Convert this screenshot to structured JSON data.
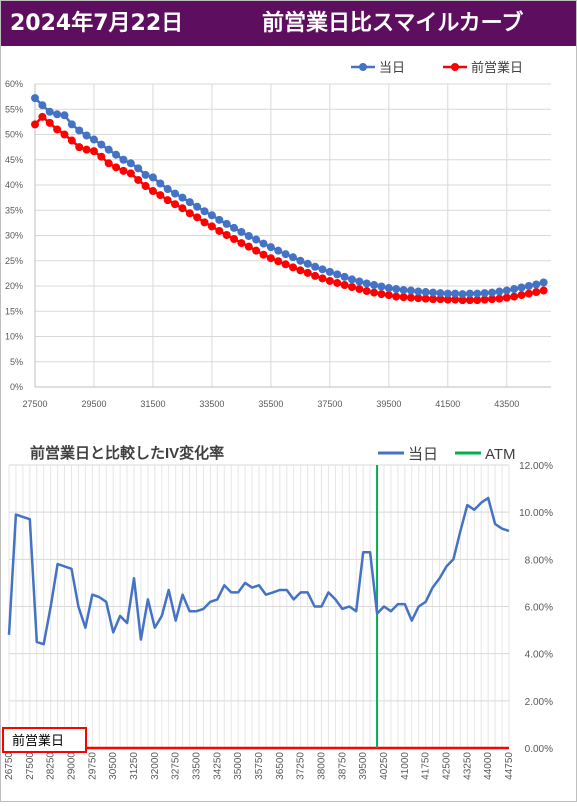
{
  "header": {
    "date": "2024年7月22日",
    "title": "前営業日比スマイルカーブ",
    "bg_color": "#5e0e5e"
  },
  "chart_data": [
    {
      "type": "line",
      "title": "",
      "xlabel": "",
      "ylabel": "",
      "x_ticks": [
        27500,
        29500,
        31500,
        33500,
        35500,
        37500,
        39500,
        41500,
        43500
      ],
      "y_ticks": [
        "0%",
        "5%",
        "10%",
        "15%",
        "20%",
        "25%",
        "30%",
        "35%",
        "40%",
        "45%",
        "50%",
        "55%",
        "60%"
      ],
      "xlim": [
        27500,
        45000
      ],
      "ylim": [
        0,
        60
      ],
      "grid": true,
      "legend": "top-right",
      "x": [
        27500,
        27750,
        28000,
        28250,
        28500,
        28750,
        29000,
        29250,
        29500,
        29750,
        30000,
        30250,
        30500,
        30750,
        31000,
        31250,
        31500,
        31750,
        32000,
        32250,
        32500,
        32750,
        33000,
        33250,
        33500,
        33750,
        34000,
        34250,
        34500,
        34750,
        35000,
        35250,
        35500,
        35750,
        36000,
        36250,
        36500,
        36750,
        37000,
        37250,
        37500,
        37750,
        38000,
        38250,
        38500,
        38750,
        39000,
        39250,
        39500,
        39750,
        40000,
        40250,
        40500,
        40750,
        41000,
        41250,
        41500,
        41750,
        42000,
        42250,
        42500,
        42750,
        43000,
        43250,
        43500,
        43750,
        44000,
        44250,
        44500,
        44750
      ],
      "series": [
        {
          "name": "当日",
          "color": "#4472c4",
          "values": [
            57.2,
            55.8,
            54.5,
            54.0,
            53.8,
            52.0,
            50.8,
            49.8,
            49.0,
            48.0,
            47.0,
            46.0,
            45.0,
            44.3,
            43.3,
            42.0,
            41.5,
            40.3,
            39.2,
            38.3,
            37.5,
            36.6,
            35.7,
            34.8,
            34.0,
            33.1,
            32.3,
            31.5,
            30.7,
            29.9,
            29.2,
            28.4,
            27.7,
            27.0,
            26.3,
            25.7,
            25.0,
            24.4,
            23.8,
            23.3,
            22.8,
            22.3,
            21.8,
            21.3,
            20.9,
            20.5,
            20.2,
            19.9,
            19.6,
            19.4,
            19.2,
            19.1,
            18.9,
            18.8,
            18.7,
            18.6,
            18.5,
            18.5,
            18.4,
            18.5,
            18.5,
            18.6,
            18.7,
            18.9,
            19.1,
            19.4,
            19.7,
            20.0,
            20.3,
            20.7
          ]
        },
        {
          "name": "前営業日",
          "color": "#ff0000",
          "values": [
            52.0,
            53.5,
            52.3,
            51.0,
            50.0,
            48.8,
            47.5,
            47.0,
            46.7,
            45.6,
            44.3,
            43.5,
            42.8,
            42.3,
            41.0,
            39.8,
            38.8,
            38.0,
            37.0,
            36.2,
            35.4,
            34.4,
            33.6,
            32.6,
            31.8,
            30.9,
            30.1,
            29.3,
            28.5,
            27.8,
            27.0,
            26.2,
            25.5,
            24.9,
            24.3,
            23.7,
            23.1,
            22.6,
            22.0,
            21.5,
            21.0,
            20.6,
            20.2,
            19.8,
            19.4,
            19.0,
            18.7,
            18.4,
            18.2,
            17.9,
            17.8,
            17.7,
            17.6,
            17.5,
            17.4,
            17.4,
            17.3,
            17.3,
            17.2,
            17.2,
            17.2,
            17.3,
            17.4,
            17.5,
            17.7,
            17.9,
            18.2,
            18.5,
            18.8,
            19.1
          ]
        }
      ]
    },
    {
      "type": "line",
      "title": "前営業日と比較したIV変化率",
      "xlabel": "",
      "ylabel": "",
      "x_ticks": [
        26750,
        27500,
        28250,
        29000,
        29750,
        30500,
        31250,
        32000,
        32750,
        33500,
        34250,
        35000,
        35750,
        36500,
        37250,
        38000,
        38750,
        39500,
        40250,
        41000,
        41750,
        42500,
        43250,
        44000,
        44750
      ],
      "y_ticks": [
        "0.00%",
        "2.00%",
        "4.00%",
        "6.00%",
        "8.00%",
        "10.00%",
        "12.00%"
      ],
      "xlim": [
        26750,
        44750
      ],
      "ylim": [
        0,
        12
      ],
      "grid": true,
      "legend": "top-right",
      "atm_strike": 40000,
      "annotation": "前営業日",
      "x": [
        26750,
        27000,
        27250,
        27500,
        27750,
        28000,
        28250,
        28500,
        28750,
        29000,
        29250,
        29500,
        29750,
        30000,
        30250,
        30500,
        30750,
        31000,
        31250,
        31500,
        31750,
        32000,
        32250,
        32500,
        32750,
        33000,
        33250,
        33500,
        33750,
        34000,
        34250,
        34500,
        34750,
        35000,
        35250,
        35500,
        35750,
        36000,
        36250,
        36500,
        36750,
        37000,
        37250,
        37500,
        37750,
        38000,
        38250,
        38500,
        38750,
        39000,
        39250,
        39500,
        39750,
        40000,
        40250,
        40500,
        40750,
        41000,
        41250,
        41500,
        41750,
        42000,
        42250,
        42500,
        42750,
        43000,
        43250,
        43500,
        43750,
        44000,
        44250,
        44500,
        44750
      ],
      "series": [
        {
          "name": "当日",
          "color": "#4472c4",
          "values": [
            4.8,
            9.9,
            9.8,
            9.7,
            4.5,
            4.4,
            6.0,
            7.8,
            7.7,
            7.6,
            6.0,
            5.1,
            6.5,
            6.4,
            6.2,
            4.9,
            5.6,
            5.3,
            7.2,
            4.6,
            6.3,
            5.1,
            5.6,
            6.7,
            5.4,
            6.5,
            5.8,
            5.8,
            5.9,
            6.2,
            6.3,
            6.9,
            6.6,
            6.6,
            7.0,
            6.8,
            6.9,
            6.5,
            6.6,
            6.7,
            6.7,
            6.3,
            6.6,
            6.6,
            6.0,
            6.0,
            6.6,
            6.3,
            5.9,
            6.0,
            5.8,
            8.3,
            8.3,
            5.7,
            6.0,
            5.8,
            6.1,
            6.1,
            5.4,
            6.0,
            6.2,
            6.8,
            7.2,
            7.7,
            8.0,
            9.2,
            10.3,
            10.1,
            10.4,
            10.6,
            9.5,
            9.3,
            9.2
          ]
        },
        {
          "name": "前営業日",
          "color": "#ff0000",
          "values": [
            0,
            0,
            0,
            0,
            0,
            0,
            0,
            0,
            0,
            0,
            0,
            0,
            0,
            0,
            0,
            0,
            0,
            0,
            0,
            0,
            0,
            0,
            0,
            0,
            0,
            0,
            0,
            0,
            0,
            0,
            0,
            0,
            0,
            0,
            0,
            0,
            0,
            0,
            0,
            0,
            0,
            0,
            0,
            0,
            0,
            0,
            0,
            0,
            0,
            0,
            0,
            0,
            0,
            0,
            0,
            0,
            0,
            0,
            0,
            0,
            0,
            0,
            0,
            0,
            0,
            0,
            0,
            0,
            0,
            0,
            0,
            0,
            0
          ]
        },
        {
          "name": "ATM",
          "color": "#00b050"
        }
      ]
    }
  ]
}
